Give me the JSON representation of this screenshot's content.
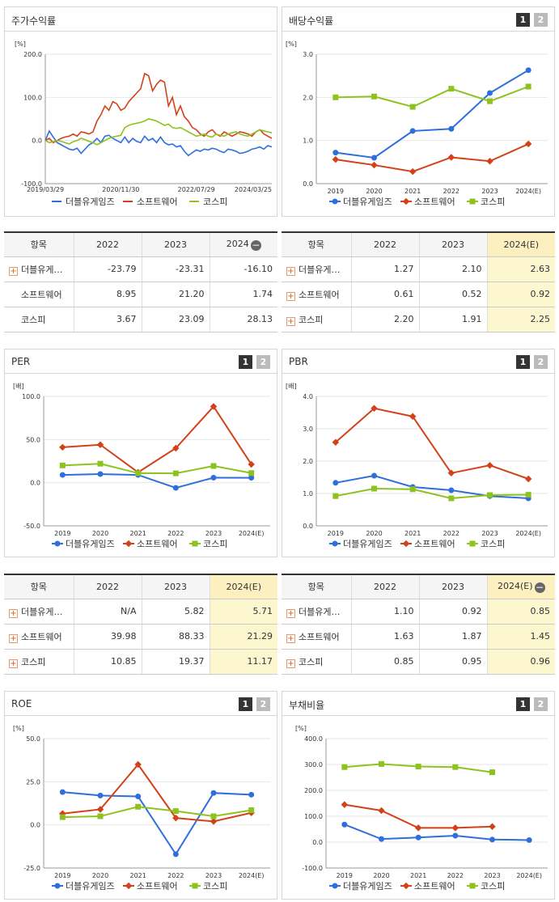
{
  "colors": {
    "s1": "#2f6fdc",
    "s2": "#d2421a",
    "s3": "#8dc21f"
  },
  "series_names": [
    "더블유게임즈",
    "소프트웨어",
    "코스피"
  ],
  "pager": {
    "p1": "1",
    "p2": "2"
  },
  "panels": {
    "stock": {
      "title": "주가수익률"
    },
    "div": {
      "title": "배당수익률"
    },
    "per": {
      "title": "PER"
    },
    "pbr": {
      "title": "PBR"
    },
    "roe": {
      "title": "ROE"
    },
    "debt": {
      "title": "부채비율"
    }
  },
  "tables": {
    "stock": {
      "headers": [
        "항목",
        "2022",
        "2023",
        "2024"
      ],
      "rows": [
        [
          "더블유게…",
          "-23.79",
          "-23.31",
          "-16.10"
        ],
        [
          "소프트웨어",
          "8.95",
          "21.20",
          "1.74"
        ],
        [
          "코스피",
          "3.67",
          "23.09",
          "28.13"
        ]
      ]
    },
    "div": {
      "headers": [
        "항목",
        "2022",
        "2023",
        "2024(E)"
      ],
      "rows": [
        [
          "더블유게…",
          "1.27",
          "2.10",
          "2.63"
        ],
        [
          "소프트웨어",
          "0.61",
          "0.52",
          "0.92"
        ],
        [
          "코스피",
          "2.20",
          "1.91",
          "2.25"
        ]
      ]
    },
    "per": {
      "headers": [
        "항목",
        "2022",
        "2023",
        "2024(E)"
      ],
      "rows": [
        [
          "더블유게…",
          "N/A",
          "5.82",
          "5.71"
        ],
        [
          "소프트웨어",
          "39.98",
          "88.33",
          "21.29"
        ],
        [
          "코스피",
          "10.85",
          "19.37",
          "11.17"
        ]
      ]
    },
    "pbr": {
      "headers": [
        "항목",
        "2022",
        "2023",
        "2024(E)"
      ],
      "rows": [
        [
          "더블유게…",
          "1.10",
          "0.92",
          "0.85"
        ],
        [
          "소프트웨어",
          "1.63",
          "1.87",
          "1.45"
        ],
        [
          "코스피",
          "0.85",
          "0.95",
          "0.96"
        ]
      ]
    }
  },
  "chart_data": [
    {
      "id": "stock",
      "type": "line",
      "unit": "[%]",
      "ylim": [
        -100,
        200
      ],
      "yticks": [
        "200.0",
        "100.0",
        "0.0",
        "-100.0"
      ],
      "xticks": [
        "2019/03/29",
        "2020/11/30",
        "2022/07/29",
        "2024/03/25"
      ],
      "series": [
        {
          "name": "더블유게임즈",
          "values": [
            0,
            22,
            8,
            -5,
            -10,
            -15,
            -20,
            -22,
            -18,
            -30,
            -20,
            -10,
            -5,
            5,
            -5,
            10,
            12,
            5,
            0,
            -5,
            8,
            -5,
            5,
            -2,
            -5,
            10,
            0,
            5,
            -5,
            8,
            -5,
            -10,
            -8,
            -15,
            -12,
            -25,
            -35,
            -28,
            -22,
            -25,
            -20,
            -22,
            -18,
            -20,
            -25,
            -28,
            -20,
            -22,
            -25,
            -30,
            -28,
            -25,
            -20,
            -18,
            -15,
            -20,
            -12,
            -15
          ]
        },
        {
          "name": "소프트웨어",
          "values": [
            0,
            5,
            -5,
            0,
            5,
            8,
            10,
            15,
            10,
            20,
            18,
            15,
            20,
            45,
            60,
            80,
            70,
            90,
            85,
            70,
            75,
            90,
            100,
            110,
            120,
            155,
            150,
            115,
            130,
            140,
            135,
            80,
            100,
            60,
            80,
            55,
            45,
            30,
            25,
            15,
            10,
            20,
            25,
            15,
            10,
            20,
            15,
            10,
            15,
            20,
            18,
            15,
            10,
            20,
            25,
            15,
            10,
            5
          ]
        },
        {
          "name": "코스피",
          "values": [
            0,
            -5,
            -3,
            0,
            -2,
            -5,
            -8,
            -3,
            0,
            5,
            2,
            -2,
            -5,
            -10,
            -5,
            0,
            5,
            8,
            10,
            12,
            30,
            35,
            38,
            40,
            42,
            45,
            50,
            48,
            45,
            40,
            35,
            38,
            30,
            28,
            30,
            25,
            20,
            15,
            10,
            12,
            15,
            10,
            8,
            15,
            12,
            10,
            15,
            18,
            20,
            15,
            12,
            10,
            15,
            20,
            25,
            22,
            20,
            18
          ]
        }
      ]
    },
    {
      "id": "div",
      "type": "line",
      "unit": "[%]",
      "ylim": [
        0,
        3
      ],
      "yticks": [
        "3.0",
        "2.0",
        "1.0",
        "0.0"
      ],
      "categories": [
        "2019",
        "2020",
        "2021",
        "2022",
        "2023",
        "2024(E)"
      ],
      "series": [
        {
          "name": "더블유게임즈",
          "values": [
            0.72,
            0.6,
            1.22,
            1.27,
            2.1,
            2.63
          ]
        },
        {
          "name": "소프트웨어",
          "values": [
            0.56,
            0.43,
            0.28,
            0.61,
            0.52,
            0.92
          ]
        },
        {
          "name": "코스피",
          "values": [
            2.0,
            2.02,
            1.78,
            2.2,
            1.91,
            2.25
          ]
        }
      ]
    },
    {
      "id": "per",
      "type": "line",
      "unit": "[배]",
      "ylim": [
        -50,
        100
      ],
      "yticks": [
        "100.0",
        "50.0",
        "0.0",
        "-50.0"
      ],
      "categories": [
        "2019",
        "2020",
        "2021",
        "2022",
        "2023",
        "2024(E)"
      ],
      "series": [
        {
          "name": "더블유게임즈",
          "values": [
            9,
            10,
            9,
            -6,
            5.82,
            5.71
          ]
        },
        {
          "name": "소프트웨어",
          "values": [
            41,
            44,
            12,
            39.98,
            88.33,
            21.29
          ]
        },
        {
          "name": "코스피",
          "values": [
            20,
            22,
            11,
            10.85,
            19.37,
            11.17
          ]
        }
      ]
    },
    {
      "id": "pbr",
      "type": "line",
      "unit": "[배]",
      "ylim": [
        0,
        4
      ],
      "yticks": [
        "4.0",
        "3.0",
        "2.0",
        "1.0",
        "0.0"
      ],
      "categories": [
        "2019",
        "2020",
        "2021",
        "2022",
        "2023",
        "2024(E)"
      ],
      "series": [
        {
          "name": "더블유게임즈",
          "values": [
            1.33,
            1.55,
            1.2,
            1.1,
            0.92,
            0.85
          ]
        },
        {
          "name": "소프트웨어",
          "values": [
            2.58,
            3.63,
            3.38,
            1.63,
            1.87,
            1.45
          ]
        },
        {
          "name": "코스피",
          "values": [
            0.92,
            1.15,
            1.13,
            0.85,
            0.95,
            0.96
          ]
        }
      ]
    },
    {
      "id": "roe",
      "type": "line",
      "unit": "[%]",
      "ylim": [
        -25,
        50
      ],
      "yticks": [
        "50.0",
        "25.0",
        "0.0",
        "-25.0"
      ],
      "categories": [
        "2019",
        "2020",
        "2021",
        "2022",
        "2023",
        "2024(E)"
      ],
      "series": [
        {
          "name": "더블유게임즈",
          "values": [
            19,
            17,
            16.5,
            -17,
            18.5,
            17.5
          ]
        },
        {
          "name": "소프트웨어",
          "values": [
            6.5,
            9,
            35,
            4,
            2,
            7
          ]
        },
        {
          "name": "코스피",
          "values": [
            4.5,
            5,
            10.5,
            8,
            5,
            8.5
          ]
        }
      ]
    },
    {
      "id": "debt",
      "type": "line",
      "unit": "[%]",
      "ylim": [
        -100,
        400
      ],
      "yticks": [
        "400.0",
        "300.0",
        "200.0",
        "100.0",
        "0.0",
        "-100.0"
      ],
      "categories": [
        "2019",
        "2020",
        "2021",
        "2022",
        "2023",
        "2024(E)"
      ],
      "series": [
        {
          "name": "더블유게임즈",
          "values": [
            68,
            12,
            18,
            25,
            10,
            8
          ]
        },
        {
          "name": "소프트웨어",
          "values": [
            145,
            122,
            55,
            55,
            60,
            null
          ]
        },
        {
          "name": "코스피",
          "values": [
            290,
            302,
            292,
            290,
            270,
            null
          ]
        }
      ]
    }
  ]
}
